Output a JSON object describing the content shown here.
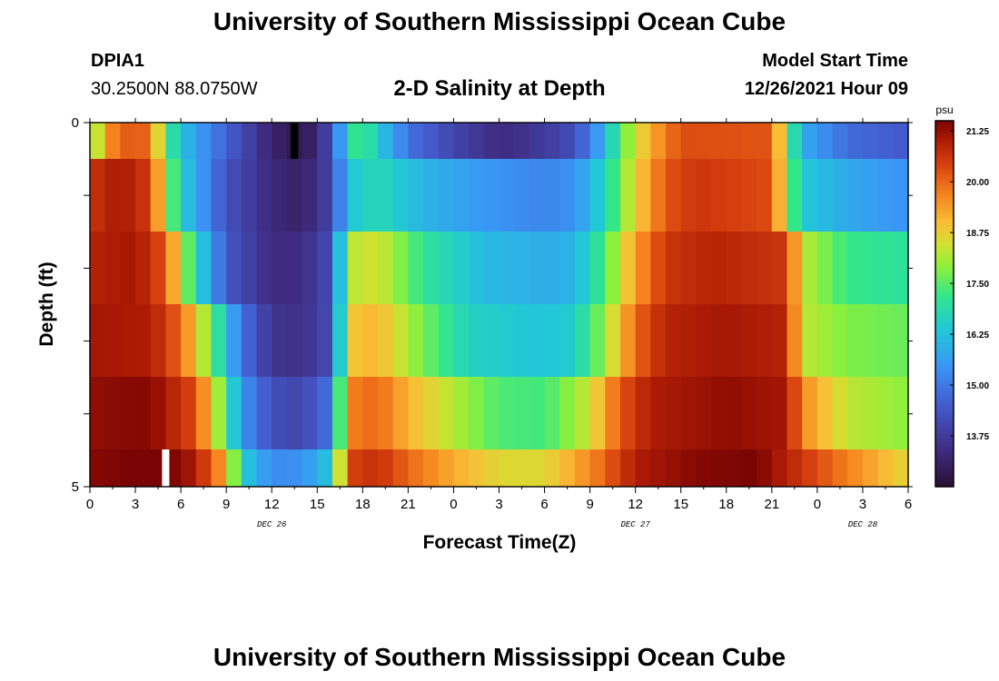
{
  "header": {
    "title": "University of Southern Mississippi Ocean Cube",
    "station": "DPIA1",
    "coords": "30.2500N  88.0750W",
    "subtitle": "2-D Salinity at Depth",
    "model_start_label": "Model Start Time",
    "model_start_value": "12/26/2021 Hour 09"
  },
  "footer": {
    "title": "University of Southern Mississippi Ocean Cube"
  },
  "chart_data": {
    "type": "heatmap",
    "title": "2-D Salinity at Depth",
    "xlabel": "Forecast Time(Z)",
    "ylabel": "Depth (ft)",
    "x_tick_labels": [
      "0",
      "3",
      "6",
      "9",
      "12",
      "15",
      "18",
      "21",
      "0",
      "3",
      "6",
      "9",
      "12",
      "15",
      "18",
      "21",
      "0",
      "3",
      "6"
    ],
    "x_date_labels": [
      {
        "label": "DEC 26",
        "tick_index": 4
      },
      {
        "label": "DEC 27",
        "tick_index": 12
      },
      {
        "label": "DEC 28",
        "tick_index": 17
      }
    ],
    "y_tick_labels": [
      "0",
      "5"
    ],
    "ylim": [
      0,
      5
    ],
    "depth_levels": [
      0,
      1,
      2,
      3,
      4,
      5
    ],
    "time_range_hours": [
      0,
      54
    ],
    "colorbar": {
      "unit": "psu",
      "min": 12.5,
      "max": 21.5,
      "tick_labels": [
        "21.25",
        "20.00",
        "18.75",
        "17.50",
        "16.25",
        "15.00",
        "13.75"
      ],
      "tick_values": [
        21.25,
        20.0,
        18.75,
        17.5,
        16.25,
        15.0,
        13.75
      ]
    },
    "rows": [
      {
        "depth_band": "0-1 ft",
        "salinity_keyframes": [
          [
            0,
            17.2
          ],
          [
            1,
            19.5
          ],
          [
            3,
            20.3
          ],
          [
            4,
            19.8
          ],
          [
            5,
            17.5
          ],
          [
            6,
            16.2
          ],
          [
            9,
            14.6
          ],
          [
            12,
            13.2
          ],
          [
            14,
            12.7
          ],
          [
            16,
            14.2
          ],
          [
            17,
            16.8
          ],
          [
            18,
            17.4
          ],
          [
            19,
            16.4
          ],
          [
            21,
            14.9
          ],
          [
            24,
            14.0
          ],
          [
            27,
            13.4
          ],
          [
            29,
            13.6
          ],
          [
            32,
            14.2
          ],
          [
            34,
            16.0
          ],
          [
            35,
            17.5
          ],
          [
            37,
            19.2
          ],
          [
            39,
            20.3
          ],
          [
            45,
            20.2
          ],
          [
            46,
            17.8
          ],
          [
            47,
            15.8
          ],
          [
            50,
            14.8
          ],
          [
            54,
            14.4
          ]
        ]
      },
      {
        "depth_band": "1-2 ft",
        "salinity_keyframes": [
          [
            0,
            20.6
          ],
          [
            2,
            21.1
          ],
          [
            4,
            20.5
          ],
          [
            5,
            18.2
          ],
          [
            6,
            16.5
          ],
          [
            9,
            14.3
          ],
          [
            12,
            13.3
          ],
          [
            14,
            13.1
          ],
          [
            16,
            14.0
          ],
          [
            17,
            16.3
          ],
          [
            19,
            16.8
          ],
          [
            22,
            16.0
          ],
          [
            26,
            15.5
          ],
          [
            30,
            15.2
          ],
          [
            32,
            15.4
          ],
          [
            34,
            16.7
          ],
          [
            36,
            18.7
          ],
          [
            38,
            20.2
          ],
          [
            40,
            20.6
          ],
          [
            45,
            20.3
          ],
          [
            46,
            18.0
          ],
          [
            47,
            16.4
          ],
          [
            50,
            15.8
          ],
          [
            54,
            15.4
          ]
        ]
      },
      {
        "depth_band": "2-3 ft",
        "salinity_keyframes": [
          [
            0,
            20.9
          ],
          [
            3,
            21.1
          ],
          [
            5,
            20.2
          ],
          [
            6,
            18.3
          ],
          [
            7,
            16.8
          ],
          [
            9,
            14.4
          ],
          [
            12,
            13.4
          ],
          [
            14,
            13.4
          ],
          [
            16,
            14.2
          ],
          [
            17,
            18.2
          ],
          [
            19,
            18.5
          ],
          [
            22,
            17.1
          ],
          [
            26,
            16.1
          ],
          [
            30,
            15.9
          ],
          [
            32,
            16.0
          ],
          [
            34,
            17.4
          ],
          [
            36,
            19.4
          ],
          [
            38,
            20.6
          ],
          [
            41,
            20.9
          ],
          [
            46,
            20.6
          ],
          [
            47,
            18.3
          ],
          [
            50,
            17.2
          ],
          [
            54,
            17.0
          ]
        ]
      },
      {
        "depth_band": "3-4 ft",
        "salinity_keyframes": [
          [
            0,
            21.1
          ],
          [
            4,
            21.0
          ],
          [
            6,
            20.0
          ],
          [
            8,
            17.6
          ],
          [
            10,
            14.9
          ],
          [
            12,
            13.6
          ],
          [
            14,
            13.5
          ],
          [
            16,
            14.2
          ],
          [
            17,
            18.8
          ],
          [
            19,
            19.1
          ],
          [
            21,
            18.1
          ],
          [
            25,
            16.6
          ],
          [
            30,
            16.3
          ],
          [
            32,
            16.5
          ],
          [
            34,
            18.0
          ],
          [
            36,
            20.0
          ],
          [
            38,
            20.9
          ],
          [
            42,
            21.1
          ],
          [
            46,
            20.9
          ],
          [
            47,
            18.3
          ],
          [
            50,
            17.8
          ],
          [
            54,
            17.6
          ]
        ]
      },
      {
        "depth_band": "4-5 ft",
        "salinity_keyframes": [
          [
            0,
            21.3
          ],
          [
            4,
            21.4
          ],
          [
            7,
            20.3
          ],
          [
            9,
            17.3
          ],
          [
            10,
            15.5
          ],
          [
            12,
            14.2
          ],
          [
            14,
            14.0
          ],
          [
            16,
            15.0
          ],
          [
            17,
            19.7
          ],
          [
            19,
            20.0
          ],
          [
            21,
            19.1
          ],
          [
            24,
            18.2
          ],
          [
            27,
            17.4
          ],
          [
            30,
            17.3
          ],
          [
            33,
            18.4
          ],
          [
            35,
            20.2
          ],
          [
            37,
            21.0
          ],
          [
            42,
            21.3
          ],
          [
            46,
            21.1
          ],
          [
            47,
            19.6
          ],
          [
            50,
            18.3
          ],
          [
            54,
            17.9
          ]
        ]
      },
      {
        "depth_band": "5 ft",
        "salinity_keyframes": [
          [
            0,
            21.4
          ],
          [
            5,
            21.6
          ],
          [
            7,
            21.0
          ],
          [
            9,
            19.2
          ],
          [
            10,
            16.5
          ],
          [
            12,
            15.3
          ],
          [
            14,
            15.4
          ],
          [
            16,
            16.4
          ],
          [
            17,
            20.4
          ],
          [
            19,
            20.7
          ],
          [
            21,
            20.0
          ],
          [
            24,
            19.2
          ],
          [
            27,
            18.6
          ],
          [
            30,
            18.6
          ],
          [
            33,
            19.6
          ],
          [
            36,
            21.0
          ],
          [
            40,
            21.4
          ],
          [
            44,
            21.5
          ],
          [
            46,
            20.9
          ],
          [
            49,
            20.0
          ],
          [
            54,
            18.6
          ]
        ]
      }
    ],
    "markers": [
      {
        "depth_band": "0-1 ft",
        "forecast_hour": 13.5,
        "color": "#000000"
      },
      {
        "depth_band": "5 ft",
        "forecast_hour": 5.0,
        "color": "#ffffff"
      }
    ],
    "grid": false
  }
}
